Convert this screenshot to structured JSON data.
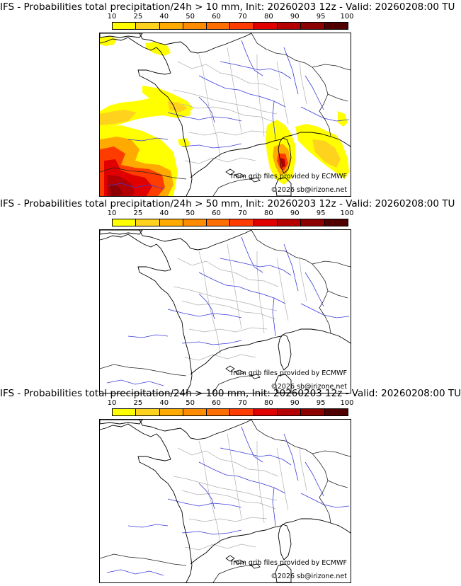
{
  "colorbar": {
    "ticks": [
      "10",
      "25",
      "40",
      "50",
      "60",
      "70",
      "80",
      "90",
      "95",
      "100"
    ],
    "colors": [
      "#ffff00",
      "#ffd21e",
      "#ffaa00",
      "#ff8c00",
      "#ff6e00",
      "#ff3c00",
      "#e10000",
      "#b40000",
      "#8c0000",
      "#500000"
    ]
  },
  "panels": [
    {
      "title": "IFS - Probabilities total precipitation/24h > 10 mm, Init: 20260203 12z - Valid: 20260208:00 TU",
      "credit": "from grib files provided by ECMWF",
      "copyright": "©2026 sb@irizone.net",
      "has_precip": true
    },
    {
      "title": "IFS - Probabilities total precipitation/24h > 50 mm, Init: 20260203 12z - Valid: 20260208:00 TU",
      "credit": "from grib files provided by ECMWF",
      "copyright": "©2026 sb@irizone.net",
      "has_precip": false
    },
    {
      "title": "IFS - Probabilities total precipitation/24h > 100 mm, Init: 20260203 12z - Valid: 20260208:00 TU",
      "credit": "from grib files provided by ECMWF",
      "copyright": "©2026 sb@irizone.net",
      "has_precip": false
    }
  ]
}
